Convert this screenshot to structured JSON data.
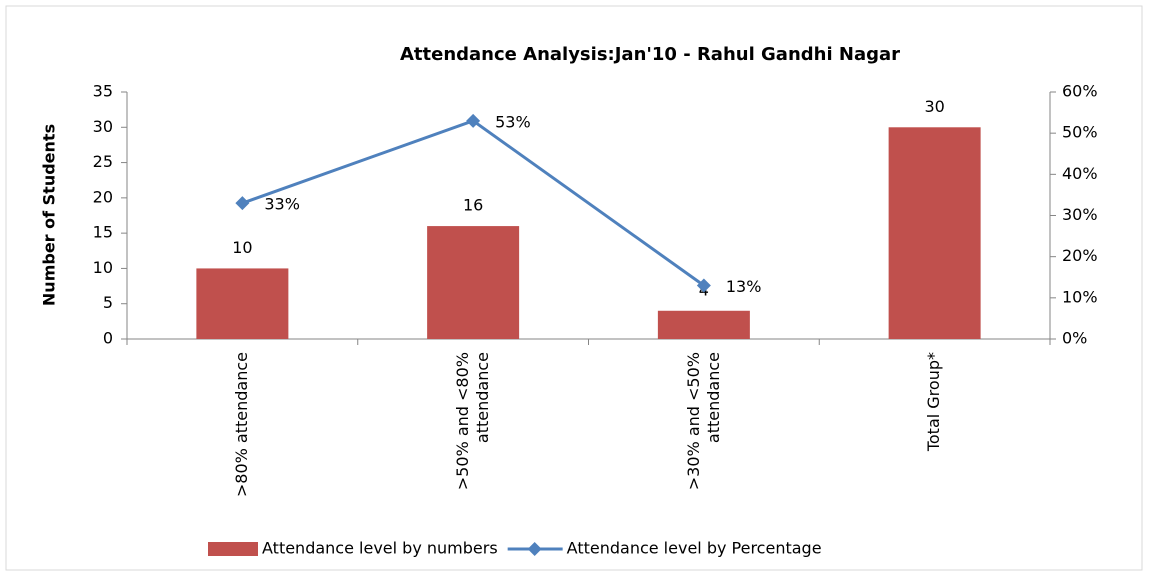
{
  "chart_data": {
    "type": "bar_line",
    "title": "Attendance Analysis:Jan'10 - Rahul Gandhi Nagar",
    "ylabel": "Number of Students",
    "categories": [
      ">80% attendance",
      ">50% and <80% attendance",
      ">30% and <50% attendance",
      "Total Group*"
    ],
    "series": [
      {
        "name": "Attendance level by numbers",
        "color": "#c0504d",
        "kind": "bar",
        "values": [
          10,
          16,
          4,
          30
        ]
      },
      {
        "name": "Attendance level by Percentage",
        "color": "#4f81bd",
        "kind": "line",
        "axis": "y2",
        "values": [
          33,
          53,
          13,
          null
        ],
        "value_labels": [
          "33%",
          "53%",
          "13%",
          null
        ]
      }
    ],
    "ylim": [
      0,
      35
    ],
    "yticks": [
      0,
      5,
      10,
      15,
      20,
      25,
      30,
      35
    ],
    "y2lim": [
      0,
      60
    ],
    "y2ticks": [
      {
        "value": 0,
        "label": "0%"
      },
      {
        "value": 10,
        "label": "10%"
      },
      {
        "value": 20,
        "label": "20%"
      },
      {
        "value": 30,
        "label": "30%"
      },
      {
        "value": 40,
        "label": "40%"
      },
      {
        "value": 50,
        "label": "50%"
      },
      {
        "value": 60,
        "label": "60%"
      }
    ],
    "legend": "bottom"
  }
}
